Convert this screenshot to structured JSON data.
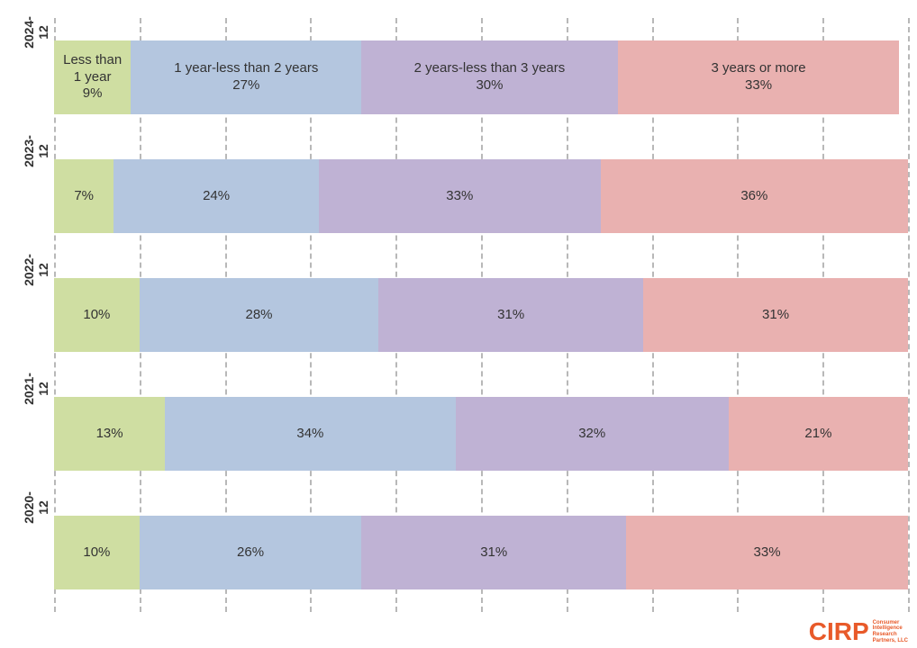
{
  "chart": {
    "type": "stacked-horizontal-bar",
    "background_color": "#ffffff",
    "grid_color": "#b8b8b8",
    "label_color": "#333333",
    "label_fontsize_pt": 12,
    "seg_label_fontsize_pt": 11,
    "xlim": [
      0,
      100
    ],
    "grid_positions_pct": [
      0,
      10,
      20,
      30,
      40,
      50,
      60,
      70,
      80,
      90,
      100
    ],
    "bar_height_pct_of_slot": 62,
    "segments": [
      {
        "key": "lt1",
        "name": "Less than 1 year",
        "color": "#cfdea2"
      },
      {
        "key": "y1_2",
        "name": "1 year-less than 2 years",
        "color": "#b4c6df"
      },
      {
        "key": "y2_3",
        "name": "2 years-less than 3 years",
        "color": "#bfb2d4"
      },
      {
        "key": "ge3",
        "name": "3 years or more",
        "color": "#e9b1b0"
      }
    ],
    "rows": [
      {
        "ylabel": "2024-12",
        "values": {
          "lt1": 9,
          "y1_2": 27,
          "y2_3": 30,
          "ge3": 33
        },
        "show_series_names": true,
        "width_pct": 99,
        "labels": {
          "lt1": "Less than\n1 year\n9%",
          "y1_2": "1 year-less than 2 years\n27%",
          "y2_3": "2 years-less than 3 years\n30%",
          "ge3": "3 years or more\n33%"
        }
      },
      {
        "ylabel": "2023-12",
        "values": {
          "lt1": 7,
          "y1_2": 24,
          "y2_3": 33,
          "ge3": 36
        },
        "show_series_names": false,
        "width_pct": 100,
        "labels": {
          "lt1": "7%",
          "y1_2": "24%",
          "y2_3": "33%",
          "ge3": "36%"
        }
      },
      {
        "ylabel": "2022-12",
        "values": {
          "lt1": 10,
          "y1_2": 28,
          "y2_3": 31,
          "ge3": 31
        },
        "show_series_names": false,
        "width_pct": 100,
        "labels": {
          "lt1": "10%",
          "y1_2": "28%",
          "y2_3": "31%",
          "ge3": "31%"
        }
      },
      {
        "ylabel": "2021-12",
        "values": {
          "lt1": 13,
          "y1_2": 34,
          "y2_3": 32,
          "ge3": 21
        },
        "show_series_names": false,
        "width_pct": 100,
        "labels": {
          "lt1": "13%",
          "y1_2": "34%",
          "y2_3": "32%",
          "ge3": "21%"
        }
      },
      {
        "ylabel": "2020-12",
        "values": {
          "lt1": 10,
          "y1_2": 26,
          "y2_3": 31,
          "ge3": 33
        },
        "show_series_names": false,
        "width_pct": 100,
        "labels": {
          "lt1": "10%",
          "y1_2": "26%",
          "y2_3": "31%",
          "ge3": "33%"
        }
      }
    ]
  },
  "logo": {
    "color": "#e85a2a",
    "text_big": "CIRP",
    "text_small": "Consumer\nIntelligence\nResearch\nPartners, LLC"
  }
}
